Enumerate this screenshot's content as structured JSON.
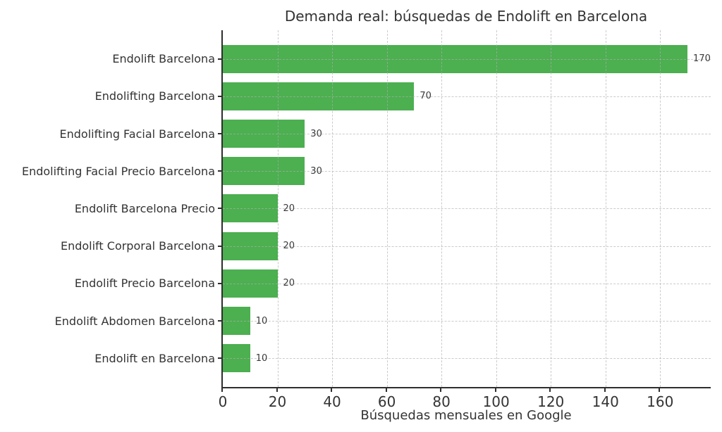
{
  "chart_data": {
    "type": "bar",
    "orientation": "horizontal",
    "title": "Demanda real: búsquedas de Endolift en Barcelona",
    "xlabel": "Búsquedas mensuales en Google",
    "categories": [
      "Endolift Barcelona",
      "Endolifting Barcelona",
      "Endolifting Facial Barcelona",
      "Endolifting Facial Precio Barcelona",
      "Endolift Barcelona Precio",
      "Endolift Corporal Barcelona",
      "Endolift Precio Barcelona",
      "Endolift Abdomen Barcelona",
      "Endolift en Barcelona"
    ],
    "values": [
      170,
      70,
      30,
      30,
      20,
      20,
      20,
      10,
      10
    ],
    "value_labels": [
      "170",
      "70",
      "30",
      "30",
      "20",
      "20",
      "20",
      "10",
      "10"
    ],
    "xticks": [
      0,
      20,
      40,
      60,
      80,
      100,
      120,
      140,
      160
    ],
    "xlim": [
      0,
      178.5
    ],
    "grid": "dashed",
    "legend": "none",
    "colors": {
      "bar": "#4CAF50",
      "grid": "#cccccc",
      "spine": "#2e2e2e",
      "text": "#333333"
    }
  }
}
